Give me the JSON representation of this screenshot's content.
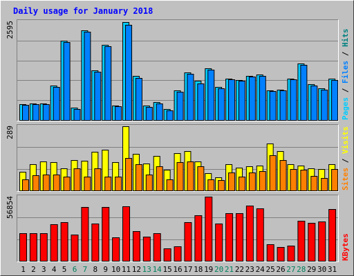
{
  "title": "Daily usage for January 2018",
  "colors": {
    "background": "#c0c0c0",
    "title": "#0000ff",
    "pages": "#00ccff",
    "files": "#0080ff",
    "hits": "#008080",
    "sites": "#ff8000",
    "visits": "#ffff00",
    "kbytes": "#ff0000",
    "weekday_label": "#000000",
    "weekend_label": "#00805c"
  },
  "chart_data": [
    {
      "type": "bar",
      "title": "Daily usage for January 2018",
      "y_max_label": "2595",
      "ylim": [
        0,
        2595
      ],
      "grid": true,
      "legend": [
        {
          "text": "Pages",
          "color": "#00ccff"
        },
        {
          "text": "Files",
          "color": "#0080ff"
        },
        {
          "text": "Hits",
          "color": "#008080"
        }
      ],
      "legend_separator": "/",
      "categories": [
        "1",
        "2",
        "3",
        "4",
        "5",
        "6",
        "7",
        "8",
        "9",
        "10",
        "11",
        "12",
        "13",
        "14",
        "15",
        "16",
        "17",
        "18",
        "19",
        "20",
        "21",
        "22",
        "23",
        "24",
        "25",
        "26",
        "27",
        "28",
        "29",
        "30",
        "31"
      ],
      "series": [
        {
          "name": "Hits",
          "values": [
            420,
            440,
            440,
            900,
            2080,
            330,
            2340,
            1300,
            1960,
            380,
            2550,
            1150,
            370,
            460,
            290,
            770,
            1240,
            1020,
            1350,
            860,
            1080,
            1050,
            1160,
            1190,
            770,
            790,
            1090,
            1480,
            940,
            820,
            1080
          ]
        },
        {
          "name": "Files",
          "values": [
            400,
            420,
            410,
            870,
            2040,
            290,
            2300,
            1260,
            1920,
            360,
            2490,
            1100,
            340,
            430,
            260,
            740,
            1200,
            960,
            1320,
            830,
            1060,
            1020,
            1130,
            1150,
            750,
            770,
            1060,
            1440,
            910,
            790,
            1050
          ]
        }
      ]
    },
    {
      "type": "bar",
      "y_max_label": "289",
      "ylim": [
        0,
        289
      ],
      "grid": true,
      "legend": [
        {
          "text": "Sites",
          "color": "#ff8000"
        },
        {
          "text": "Visits",
          "color": "#ffff00"
        }
      ],
      "legend_separator": "/",
      "categories": [
        "1",
        "2",
        "3",
        "4",
        "5",
        "6",
        "7",
        "8",
        "9",
        "10",
        "11",
        "12",
        "13",
        "14",
        "15",
        "16",
        "17",
        "18",
        "19",
        "20",
        "21",
        "22",
        "23",
        "24",
        "25",
        "26",
        "27",
        "28",
        "29",
        "30",
        "31"
      ],
      "series": [
        {
          "name": "Visits",
          "values": [
            82,
            118,
            128,
            126,
            98,
            134,
            132,
            172,
            182,
            126,
            285,
            162,
            120,
            154,
            92,
            166,
            176,
            128,
            76,
            58,
            118,
            100,
            108,
            110,
            208,
            176,
            118,
            112,
            98,
            94,
            118
          ]
        },
        {
          "name": "Sites",
          "values": [
            50,
            68,
            70,
            72,
            62,
            98,
            60,
            98,
            62,
            62,
            146,
            116,
            72,
            108,
            48,
            126,
            128,
            108,
            50,
            46,
            80,
            60,
            80,
            86,
            158,
            134,
            96,
            92,
            66,
            54,
            96
          ]
        }
      ]
    },
    {
      "type": "bar",
      "y_max_label": "56854",
      "ylim": [
        0,
        56854
      ],
      "grid": true,
      "legend": [
        {
          "text": "KBytes",
          "color": "#ff0000"
        }
      ],
      "categories": [
        "1",
        "2",
        "3",
        "4",
        "5",
        "6",
        "7",
        "8",
        "9",
        "10",
        "11",
        "12",
        "13",
        "14",
        "15",
        "16",
        "17",
        "18",
        "19",
        "20",
        "21",
        "22",
        "23",
        "24",
        "25",
        "26",
        "27",
        "28",
        "29",
        "30",
        "31"
      ],
      "series": [
        {
          "name": "KBytes",
          "values": [
            24400,
            24000,
            24400,
            31800,
            33600,
            23200,
            46900,
            32500,
            46900,
            20800,
            47600,
            25900,
            21200,
            24200,
            10600,
            12600,
            33600,
            39700,
            56500,
            32900,
            41800,
            41800,
            48500,
            46200,
            14500,
            12100,
            13400,
            34800,
            33200,
            34200,
            45600
          ]
        }
      ]
    }
  ],
  "weekend_days": [
    "6",
    "7",
    "13",
    "14",
    "20",
    "21",
    "27",
    "28"
  ]
}
